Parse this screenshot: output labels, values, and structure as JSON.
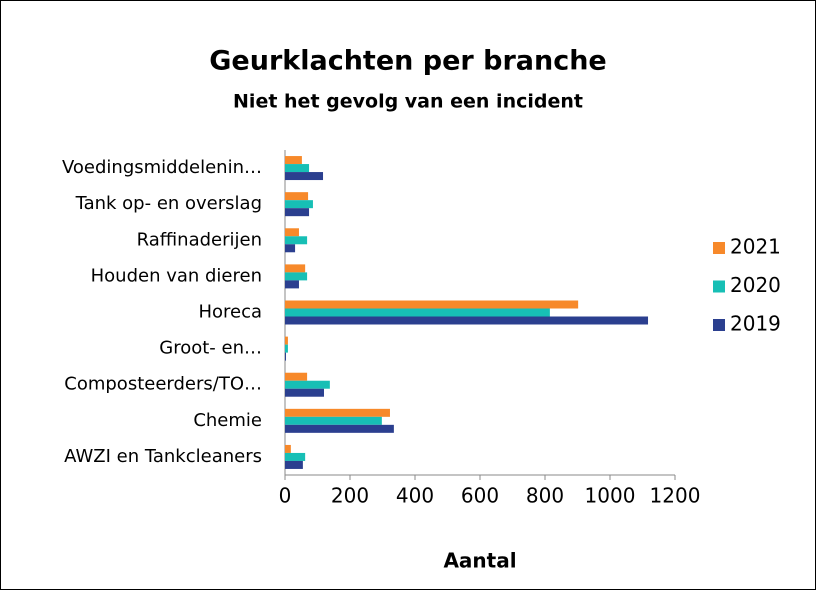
{
  "chart_data": {
    "type": "bar",
    "orientation": "horizontal",
    "title": "Geurklachten per branche",
    "subtitle": "Niet het gevolg van een incident",
    "xlabel": "Aantal",
    "categories": [
      "Voedingsmiddelenin…",
      "Tank op- en overslag",
      "Raffinaderijen",
      "Houden van dieren",
      "Horeca",
      "Groot- en…",
      "Composteerders/TO…",
      "Chemie",
      "AWZI en Tankcleaners"
    ],
    "series": [
      {
        "name": "2021",
        "color": "#f7892a",
        "values": [
          52,
          71,
          43,
          62,
          902,
          9,
          68,
          323,
          18
        ]
      },
      {
        "name": "2020",
        "color": "#17bfb5",
        "values": [
          74,
          86,
          68,
          68,
          815,
          9,
          138,
          298,
          62
        ]
      },
      {
        "name": "2019",
        "color": "#2b3f8f",
        "values": [
          117,
          74,
          31,
          43,
          1117,
          3,
          120,
          335,
          55
        ]
      }
    ],
    "xlim": [
      0,
      1200
    ],
    "xticks": [
      0,
      200,
      400,
      600,
      800,
      1000,
      1200
    ],
    "legend": "right"
  }
}
